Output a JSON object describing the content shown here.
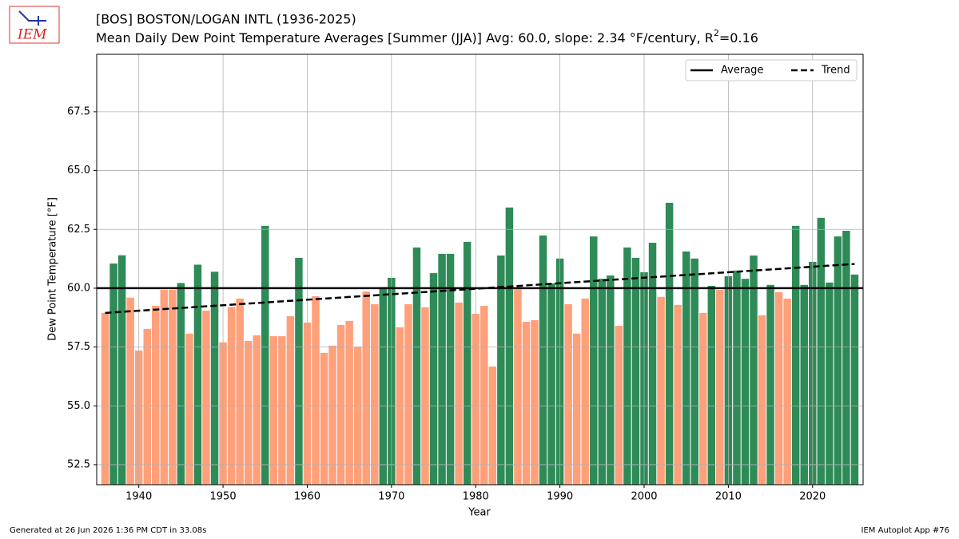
{
  "chart_data": {
    "type": "bar",
    "title": "[BOS] BOSTON/LOGAN INTL (1936-2025)",
    "subtitle": [
      "Mean Daily Dew Point Temperature Averages [Summer (JJA)]  Avg: 60.0, slope: 2.34 °F/century, R",
      "2",
      "=0.16"
    ],
    "logo_text": "IEM",
    "xlabel": "Year",
    "ylabel": "Dew Point Temperature [°F]",
    "footer_left": "Generated at 26 Jun 2026 1:36 PM CDT in 33.08s",
    "footer_right": "IEM Autoplot App #76",
    "x": [
      1936,
      1937,
      1938,
      1939,
      1940,
      1941,
      1942,
      1943,
      1944,
      1945,
      1946,
      1947,
      1948,
      1949,
      1950,
      1951,
      1952,
      1953,
      1954,
      1955,
      1956,
      1957,
      1958,
      1959,
      1960,
      1961,
      1962,
      1963,
      1964,
      1965,
      1966,
      1967,
      1968,
      1969,
      1970,
      1971,
      1972,
      1973,
      1974,
      1975,
      1976,
      1977,
      1978,
      1979,
      1980,
      1981,
      1982,
      1983,
      1984,
      1985,
      1986,
      1987,
      1988,
      1989,
      1990,
      1991,
      1992,
      1993,
      1994,
      1995,
      1996,
      1997,
      1998,
      1999,
      2000,
      2001,
      2002,
      2003,
      2004,
      2005,
      2006,
      2007,
      2008,
      2009,
      2010,
      2011,
      2012,
      2013,
      2014,
      2015,
      2016,
      2017,
      2018,
      2019,
      2020,
      2021,
      2022,
      2023,
      2024,
      2025
    ],
    "values": [
      58.95,
      61.05,
      61.4,
      59.6,
      57.35,
      58.27,
      59.25,
      59.93,
      59.93,
      60.22,
      58.07,
      61.0,
      59.05,
      60.7,
      57.7,
      59.2,
      59.56,
      57.76,
      58.0,
      62.65,
      57.96,
      57.96,
      58.81,
      61.29,
      58.54,
      59.66,
      57.25,
      57.56,
      58.44,
      58.61,
      57.52,
      59.86,
      59.32,
      60.05,
      60.44,
      58.34,
      59.32,
      61.73,
      59.19,
      60.64,
      61.46,
      61.46,
      59.39,
      61.97,
      58.91,
      59.25,
      56.67,
      61.39,
      63.43,
      59.95,
      58.57,
      58.64,
      62.24,
      60.2,
      61.26,
      59.32,
      58.07,
      59.56,
      62.2,
      60.4,
      60.54,
      58.4,
      61.73,
      61.29,
      60.68,
      61.93,
      59.63,
      63.63,
      59.29,
      61.56,
      61.26,
      58.95,
      60.1,
      59.93,
      60.51,
      60.75,
      60.4,
      61.39,
      58.85,
      60.14,
      59.83,
      59.56,
      62.65,
      60.14,
      61.12,
      62.99,
      60.24,
      62.2,
      62.44,
      60.58
    ],
    "above_color": "#2e8b57",
    "below_color": "#ffa07a",
    "average": {
      "name": "Average",
      "value": 60.0,
      "color": "#000000"
    },
    "trend": {
      "name": "Trend",
      "x": [
        1936,
        2025
      ],
      "values": [
        58.95,
        61.03
      ],
      "color": "#000000"
    },
    "xlim": [
      1935,
      2026
    ],
    "ylim": [
      51.65,
      69.94
    ],
    "xticks": [
      1940,
      1950,
      1960,
      1970,
      1980,
      1990,
      2000,
      2010,
      2020
    ],
    "yticks": [
      {
        "value": 52.5,
        "label": "52.5"
      },
      {
        "value": 55,
        "label": "55.0"
      },
      {
        "value": 57.5,
        "label": "57.5"
      },
      {
        "value": 60,
        "label": "60.0"
      },
      {
        "value": 62.5,
        "label": "62.5"
      },
      {
        "value": 65,
        "label": "65.0"
      },
      {
        "value": 67.5,
        "label": "67.5"
      }
    ],
    "grid": true,
    "legend": "upper right"
  }
}
